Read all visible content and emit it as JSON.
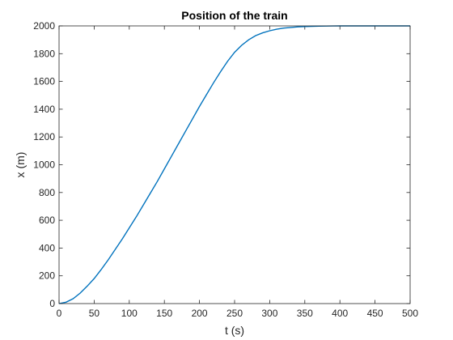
{
  "chart_data": {
    "type": "line",
    "title": "Position of the train",
    "xlabel": "t (s)",
    "ylabel": "x (m)",
    "xlim": [
      0,
      500
    ],
    "ylim": [
      0,
      2000
    ],
    "xticks": [
      0,
      50,
      100,
      150,
      200,
      250,
      300,
      350,
      400,
      450,
      500
    ],
    "yticks": [
      0,
      200,
      400,
      600,
      800,
      1000,
      1200,
      1400,
      1600,
      1800,
      2000
    ],
    "grid": false,
    "series": [
      {
        "color": "#0072bd",
        "x": [
          0,
          10,
          20,
          30,
          40,
          50,
          60,
          70,
          80,
          90,
          100,
          110,
          120,
          130,
          140,
          150,
          160,
          170,
          180,
          190,
          200,
          210,
          220,
          230,
          240,
          250,
          260,
          270,
          280,
          290,
          300,
          310,
          320,
          330,
          340,
          350,
          360,
          370,
          380,
          390,
          400,
          420,
          450,
          500
        ],
        "y": [
          0,
          10,
          35,
          75,
          125,
          180,
          245,
          315,
          390,
          465,
          545,
          625,
          710,
          795,
          880,
          970,
          1060,
          1150,
          1240,
          1330,
          1420,
          1505,
          1590,
          1670,
          1745,
          1810,
          1860,
          1900,
          1930,
          1950,
          1965,
          1976,
          1984,
          1989,
          1993,
          1995,
          1997,
          1998,
          1999,
          1999.5,
          2000,
          2000,
          2000,
          2000
        ]
      }
    ]
  }
}
